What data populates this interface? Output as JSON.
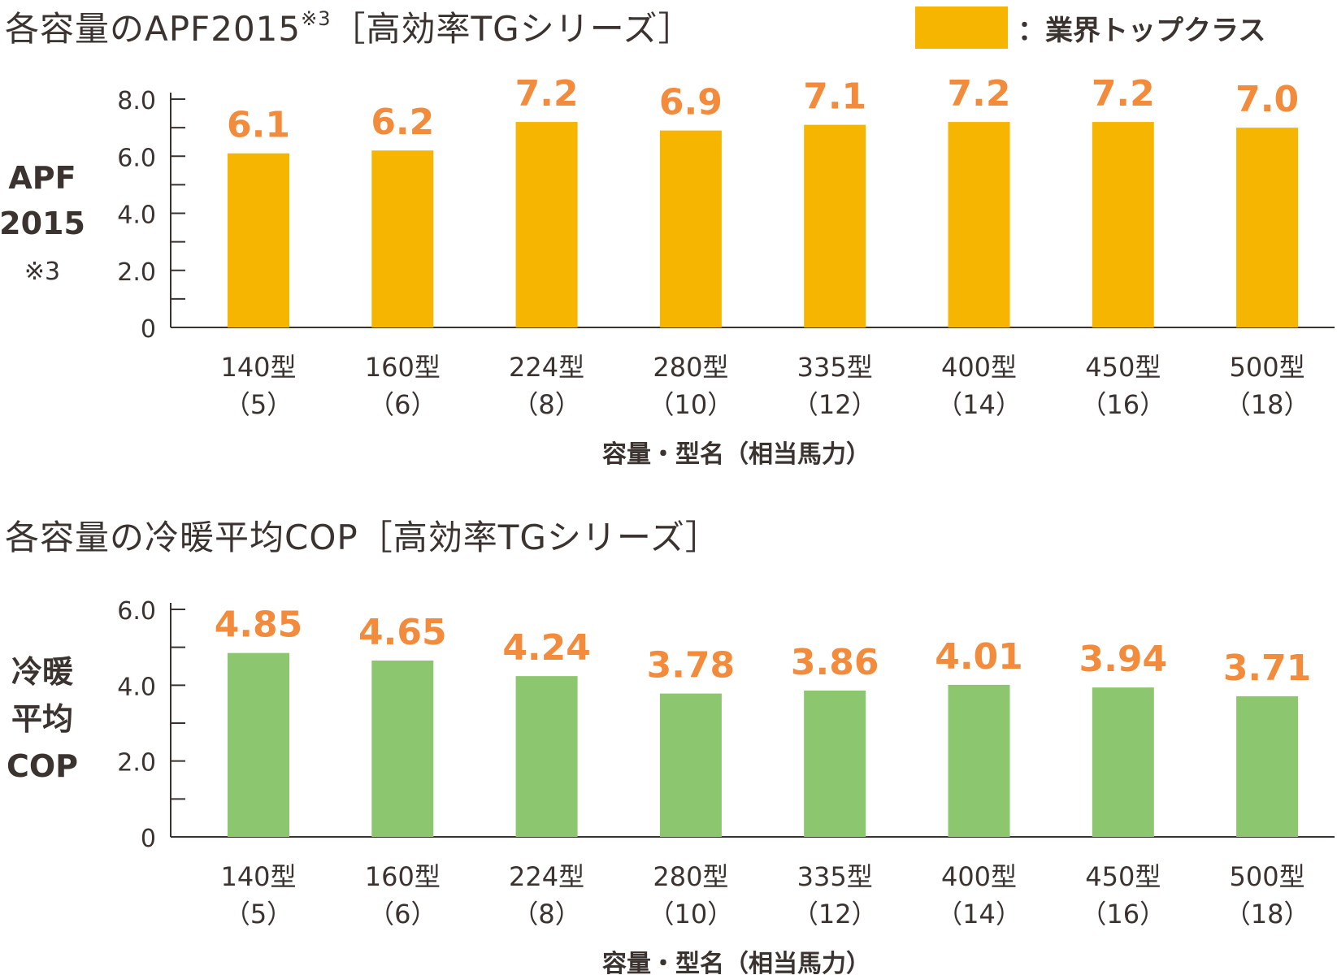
{
  "chart_data": [
    {
      "type": "bar",
      "title": "各容量のAPF2015",
      "title_sup": "※3",
      "title_suffix": "［高効率TGシリーズ］",
      "ylabel_lines": [
        "APF",
        "2015",
        "※3"
      ],
      "xlabel": "容量・型名（相当馬力）",
      "categories": [
        "140型",
        "160型",
        "224型",
        "280型",
        "335型",
        "400型",
        "450型",
        "500型"
      ],
      "subcategories": [
        "（5）",
        "（6）",
        "（8）",
        "（10）",
        "（12）",
        "（14）",
        "（16）",
        "（18）"
      ],
      "values": [
        6.1,
        6.2,
        7.2,
        6.9,
        7.1,
        7.2,
        7.2,
        7.0
      ],
      "value_labels": [
        "6.1",
        "6.2",
        "7.2",
        "6.9",
        "7.1",
        "7.2",
        "7.2",
        "7.0"
      ],
      "ylim": [
        0,
        8
      ],
      "yticks": [
        "0",
        "2.0",
        "4.0",
        "6.0",
        "8.0"
      ],
      "bar_color": "#f5b500",
      "label_color": "#f28c3c",
      "legend": {
        "label": "：業界トップクラス",
        "color": "#f5b500",
        "position": "top-right"
      }
    },
    {
      "type": "bar",
      "title": "各容量の冷暖平均COP［高効率TGシリーズ］",
      "ylabel_lines": [
        "冷暖",
        "平均",
        "COP"
      ],
      "xlabel": "容量・型名（相当馬力）",
      "categories": [
        "140型",
        "160型",
        "224型",
        "280型",
        "335型",
        "400型",
        "450型",
        "500型"
      ],
      "subcategories": [
        "（5）",
        "（6）",
        "（8）",
        "（10）",
        "（12）",
        "（14）",
        "（16）",
        "（18）"
      ],
      "values": [
        4.85,
        4.65,
        4.24,
        3.78,
        3.86,
        4.01,
        3.94,
        3.71
      ],
      "value_labels": [
        "4.85",
        "4.65",
        "4.24",
        "3.78",
        "3.86",
        "4.01",
        "3.94",
        "3.71"
      ],
      "ylim": [
        0,
        6
      ],
      "yticks": [
        "0",
        "2.0",
        "4.0",
        "6.0"
      ],
      "bar_color": "#8cc66e",
      "label_color": "#f28c3c"
    }
  ]
}
